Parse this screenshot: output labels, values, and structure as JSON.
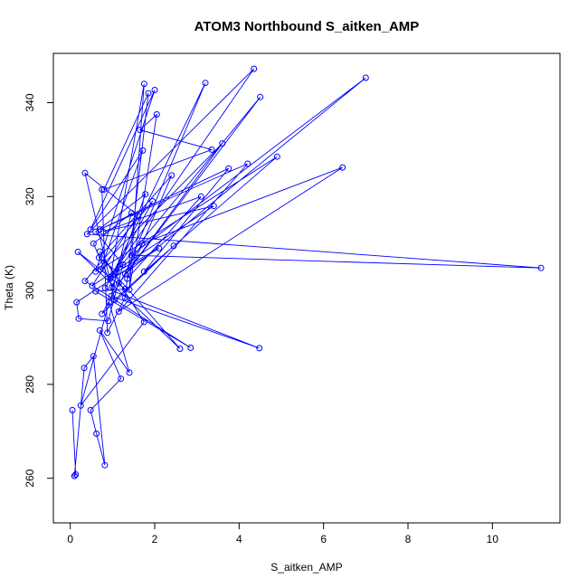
{
  "chart_data": {
    "type": "line",
    "title": "ATOM3 Northbound S_aitken_AMP",
    "xlabel": "S_aitken_AMP",
    "ylabel": "Theta (K)",
    "xlim": [
      -0.4,
      11.6
    ],
    "ylim": [
      250.5,
      350.5
    ],
    "xticks": [
      0,
      2,
      4,
      6,
      8,
      10
    ],
    "yticks": [
      260,
      280,
      300,
      320,
      340
    ],
    "xtick_labels": [
      "0",
      "2",
      "4",
      "6",
      "8",
      "10"
    ],
    "ytick_labels": [
      "260",
      "280",
      "300",
      "320",
      "340"
    ],
    "grid": false,
    "series_color": "#0000ff",
    "series": [
      {
        "x": [
          0.05,
          0.13,
          0.1,
          0.33,
          0.55,
          0.82,
          0.62,
          0.48,
          1.2,
          0.7,
          1.4,
          0.92,
          0.25,
          1.75,
          0.7,
          1.05,
          2.6,
          0.18,
          1.3,
          0.6,
          2.85,
          0.35,
          1.95,
          0.83,
          4.48,
          0.97,
          1.45,
          0.55,
          1.0,
          1.78,
          0.6,
          1.25,
          0.9,
          0.2,
          0.15,
          2.1,
          1.1,
          0.68,
          2.4,
          1.35,
          3.1,
          0.78,
          3.4,
          0.52,
          1.6,
          0.35,
          1.05,
          2.45,
          0.75,
          1.7,
          6.45,
          1.15,
          4.2,
          0.7,
          3.75,
          1.75,
          4.9,
          0.72,
          1.72,
          0.48,
          2.0,
          0.6,
          3.6,
          1.15,
          4.5,
          0.95,
          3.2,
          1.3,
          7.0,
          1.45,
          11.15,
          0.4,
          4.35,
          0.95,
          1.75,
          1.4,
          2.05,
          1.65,
          3.35,
          0.8,
          1.85,
          1.3,
          0.88,
          0.75
        ],
        "y": [
          274.5,
          260.8,
          260.5,
          283.5,
          286.0,
          262.8,
          269.5,
          274.5,
          281.2,
          291.5,
          282.5,
          297.5,
          275.5,
          293.3,
          308.3,
          303.5,
          287.6,
          308.2,
          300.3,
          299.8,
          287.8,
          302.0,
          319.0,
          300.5,
          287.7,
          298.8,
          316.5,
          310.0,
          300.8,
          320.5,
          312.5,
          305.5,
          293.5,
          294.0,
          297.5,
          309.0,
          304.0,
          307.0,
          324.5,
          302.5,
          320.0,
          312.5,
          318.0,
          301.0,
          316.0,
          325.0,
          298.0,
          309.5,
          295.0,
          310.0,
          326.2,
          295.5,
          327.0,
          313.0,
          326.0,
          304.0,
          328.5,
          304.5,
          329.8,
          313.0,
          342.7,
          304.0,
          331.3,
          301.5,
          341.2,
          302.5,
          344.2,
          303.5,
          345.3,
          307.5,
          304.8,
          312.0,
          347.2,
          302.8,
          344.0,
          300.2,
          337.5,
          334.2,
          330.0,
          321.5,
          342.0,
          298.5,
          291.0,
          321.5
        ]
      }
    ]
  }
}
